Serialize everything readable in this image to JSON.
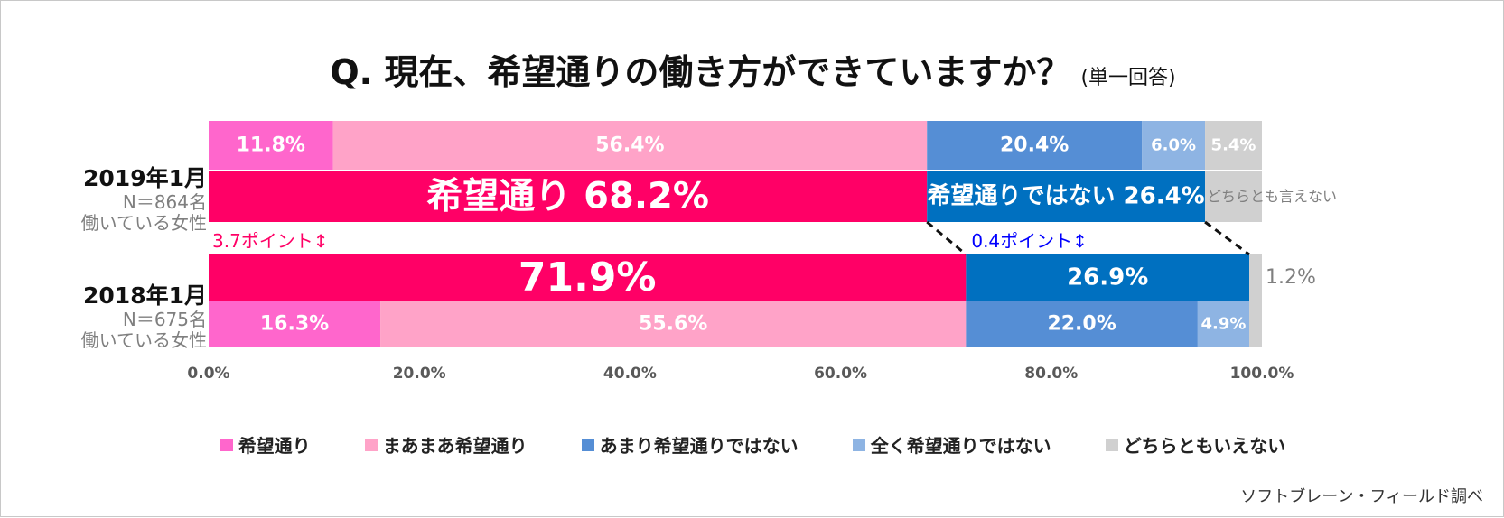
{
  "title": "Q.  現在、希望通りの働き方ができていますか？",
  "subtitle": "(単一回答)",
  "source": "ソフトブレーン・フィールド調べ",
  "rows": [
    {
      "year": "2019年1月",
      "n": "N＝864名",
      "who": "働いている女性"
    },
    {
      "year": "2018年1月",
      "n": "N＝675名",
      "who": "働いている女性"
    }
  ],
  "chart_data": {
    "type": "bar",
    "orientation": "horizontal-stacked-100",
    "xlim": [
      0,
      100
    ],
    "x_ticks": [
      "0.0%",
      "20.0%",
      "40.0%",
      "60.0%",
      "80.0%",
      "100.0%"
    ],
    "categories": [
      "2019年1月",
      "2018年1月"
    ],
    "series": [
      {
        "name": "希望通り",
        "color": "#ff66cc",
        "values": [
          11.8,
          16.3
        ],
        "labels": [
          "11.8%",
          "16.3%"
        ]
      },
      {
        "name": "まあまあ希望通り",
        "color": "#ffa3c8",
        "values": [
          56.4,
          55.6
        ],
        "labels": [
          "56.4%",
          "55.6%"
        ]
      },
      {
        "name": "あまり希望通りではない",
        "color": "#558ed5",
        "values": [
          20.4,
          22.0
        ],
        "labels": [
          "20.4%",
          "22.0%"
        ]
      },
      {
        "name": "全く希望通りではない",
        "color": "#8eb4e3",
        "values": [
          6.0,
          4.9
        ],
        "labels": [
          "6.0%",
          "4.9%"
        ]
      },
      {
        "name": "どちらともいえない",
        "color": "#d0d0d0",
        "values": [
          5.4,
          1.2
        ],
        "labels": [
          "5.4%",
          "1.2%"
        ]
      }
    ],
    "summary": [
      {
        "category": "2019年1月",
        "groups": [
          {
            "label": "希望通り  68.2%",
            "value": 68.2,
            "color": "#ff0066"
          },
          {
            "label": "希望通りではない  26.4%",
            "value": 26.4,
            "color": "#0070c0"
          },
          {
            "label": "どちらとも言えない",
            "value": 5.4,
            "color": "#d0d0d0"
          }
        ]
      },
      {
        "category": "2018年1月",
        "groups": [
          {
            "label": "71.9%",
            "value": 71.9,
            "color": "#ff0066"
          },
          {
            "label": "26.9%",
            "value": 26.9,
            "color": "#0070c0"
          },
          {
            "label": "1.2%",
            "value": 1.2,
            "color": "#d0d0d0"
          }
        ]
      }
    ],
    "annotations": [
      {
        "text": "3.7ポイント↕",
        "color": "#ff0066"
      },
      {
        "text": "0.4ポイント↕",
        "color": "#0000ff"
      }
    ]
  }
}
